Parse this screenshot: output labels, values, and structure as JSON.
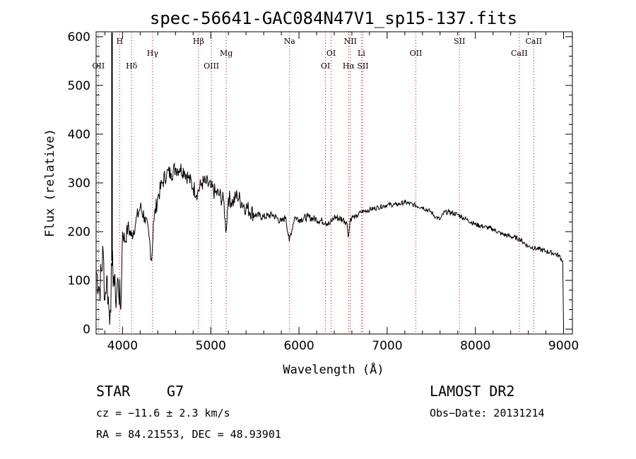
{
  "chart_data": {
    "type": "line",
    "title": "spec-56641-GAC084N47V1_sp15-137.fits",
    "xlabel": "Wavelength (Å)",
    "ylabel": "Flux (relative)",
    "xlim": [
      3700,
      9100
    ],
    "ylim": [
      -10,
      610
    ],
    "xticks": [
      4000,
      5000,
      6000,
      7000,
      8000,
      9000
    ],
    "yticks": [
      0,
      100,
      200,
      300,
      400,
      500,
      600
    ],
    "grid": false,
    "series": [
      {
        "x": [
          3700,
          3740,
          3780,
          3800,
          3820,
          3850,
          3860,
          3880,
          3900,
          3920,
          3950,
          3980,
          4000,
          4030,
          4060,
          4100,
          4150,
          4200,
          4250,
          4300,
          4330,
          4350,
          4400,
          4450,
          4500,
          4550,
          4600,
          4650,
          4700,
          4750,
          4800,
          4850,
          4900,
          4950,
          5000,
          5050,
          5100,
          5150,
          5170,
          5200,
          5250,
          5300,
          5350,
          5400,
          5500,
          5600,
          5700,
          5800,
          5850,
          5890,
          5950,
          6000,
          6100,
          6200,
          6300,
          6350,
          6400,
          6500,
          6540,
          6563,
          6580,
          6600,
          6650,
          6700,
          6800,
          6900,
          7000,
          7100,
          7200,
          7300,
          7400,
          7500,
          7550,
          7600,
          7650,
          7700,
          7800,
          7900,
          8000,
          8100,
          8200,
          8300,
          8400,
          8500,
          8600,
          8700,
          8800,
          8900,
          8950,
          8990,
          9000
        ],
        "y": [
          120,
          80,
          160,
          60,
          110,
          30,
          40,
          130,
          110,
          60,
          100,
          40,
          200,
          180,
          210,
          190,
          220,
          250,
          230,
          190,
          140,
          220,
          270,
          300,
          320,
          320,
          330,
          330,
          325,
          310,
          290,
          280,
          300,
          300,
          290,
          280,
          275,
          260,
          200,
          270,
          260,
          275,
          260,
          250,
          235,
          230,
          235,
          220,
          230,
          180,
          230,
          225,
          230,
          225,
          220,
          215,
          230,
          225,
          220,
          190,
          225,
          230,
          230,
          240,
          245,
          250,
          255,
          255,
          260,
          255,
          250,
          240,
          230,
          225,
          240,
          240,
          235,
          225,
          215,
          210,
          205,
          195,
          190,
          185,
          170,
          165,
          160,
          155,
          150,
          140,
          0
        ]
      }
    ],
    "line_markers": [
      {
        "label": "OII",
        "wavelength": 3727,
        "row": 3
      },
      {
        "label": "H",
        "wavelength": 3968,
        "row": 1
      },
      {
        "label": "Hδ",
        "wavelength": 4102,
        "row": 3
      },
      {
        "label": "Hγ",
        "wavelength": 4340,
        "row": 2
      },
      {
        "label": "Hβ",
        "wavelength": 4861,
        "row": 1
      },
      {
        "label": "OIII",
        "wavelength": 5007,
        "row": 3
      },
      {
        "label": "Mg",
        "wavelength": 5175,
        "row": 2
      },
      {
        "label": "Na",
        "wavelength": 5893,
        "row": 1
      },
      {
        "label": "OI",
        "wavelength": 6300,
        "row": 3
      },
      {
        "label": "OI",
        "wavelength": 6364,
        "row": 2
      },
      {
        "label": "NII",
        "wavelength": 6583,
        "row": 1
      },
      {
        "label": "Hα",
        "wavelength": 6563,
        "row": 3
      },
      {
        "label": "Li",
        "wavelength": 6708,
        "row": 2
      },
      {
        "label": "SII",
        "wavelength": 6724,
        "row": 3
      },
      {
        "label": "OII",
        "wavelength": 7325,
        "row": 2
      },
      {
        "label": "SII",
        "wavelength": 7820,
        "row": 1
      },
      {
        "label": "CaII",
        "wavelength": 8498,
        "row": 2
      },
      {
        "label": "CaII",
        "wavelength": 8662,
        "row": 1
      }
    ],
    "marker_color": "#cc0000",
    "line_color": "#000000"
  },
  "info": {
    "object_class": "STAR",
    "subclass": "G7",
    "survey": "LAMOST DR2",
    "cz": "cz = −11.6 ± 2.3 km/s",
    "obs_date": "Obs−Date: 20131214",
    "radec": "RA =  84.21553, DEC =  48.93901"
  }
}
